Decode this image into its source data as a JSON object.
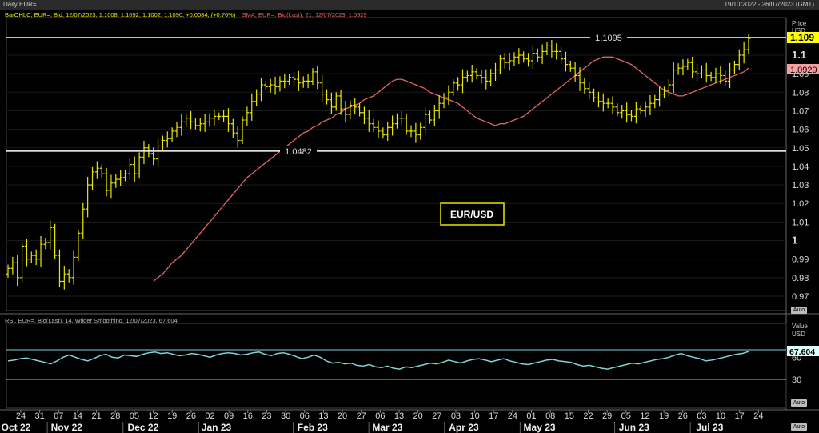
{
  "header": {
    "title": "Daily EUR=",
    "date_range": "19/10/2022 - 26/07/2023 (GMT)"
  },
  "legend": {
    "ohlc": "BarOHLC, EUR=, Bid, 12/07/2023, 1.1008, 1.1092, 1.1002, 1.1090, +0.0084, (+0.76%)",
    "sma": "SMA, EUR=, Bid(Last), 21, 12/07/2023, 1.0929",
    "rsi": "RSI, EUR=, Bid(Last), 14, Wilder Smoothing, 12/07/2023, 67.604"
  },
  "price_axis": {
    "title": "Price",
    "unit": "USD",
    "ticks": [
      "1.1",
      "1.09",
      "1.08",
      "1.07",
      "1.06",
      "1.05",
      "1.04",
      "1.03",
      "1.02",
      "1.01",
      "1",
      "0.99",
      "0.98",
      "0.97"
    ],
    "last_price_label": "1.109",
    "sma_label": "1.0929",
    "auto_label": "Auto"
  },
  "rsi_axis": {
    "title": "Value",
    "unit": "USD",
    "ticks": [
      "60",
      "30"
    ],
    "value_label": "67.604",
    "auto_label": "Auto"
  },
  "date_axis": {
    "days": [
      "24",
      "31",
      "07",
      "14",
      "21",
      "28",
      "05",
      "12",
      "19",
      "26",
      "02",
      "09",
      "16",
      "23",
      "30",
      "06",
      "13",
      "20",
      "27",
      "06",
      "13",
      "20",
      "27",
      "03",
      "10",
      "17",
      "24",
      "01",
      "08",
      "15",
      "22",
      "29",
      "05",
      "12",
      "19",
      "26",
      "03",
      "10",
      "17",
      "24"
    ],
    "months": [
      "Oct 22",
      "Nov 22",
      "Dec 22",
      "Jan 23",
      "Feb 23",
      "Mar 23",
      "Apr 23",
      "May 23",
      "Jun 23",
      "Jul 23"
    ],
    "auto_label": "Auto"
  },
  "annotations": {
    "box_label": "EUR/USD",
    "level_high": "1.1095",
    "level_low": "1.0482"
  },
  "colors": {
    "bars": "#e8e800",
    "sma": "#e06666",
    "rsi": "#7fd4d4",
    "levels": "#ffffff",
    "last_price_bg": "#ffff00",
    "sma_label_bg": "#f4a0a0"
  },
  "chart_data": [
    {
      "type": "line",
      "subtype": "ohlc",
      "x_start": "2022-10-21",
      "ylim": [
        0.965,
        1.113
      ],
      "series": [
        {
          "name": "EUR=",
          "values": [
            0.985,
            0.988,
            0.98,
            0.997,
            0.99,
            0.992,
            0.99,
            0.998,
            0.999,
            1.007,
            0.992,
            0.978,
            0.982,
            0.98,
            0.991,
            1.004,
            1.017,
            1.03,
            1.037,
            1.039,
            1.036,
            1.027,
            1.031,
            1.033,
            1.034,
            1.036,
            1.041,
            1.036,
            1.045,
            1.05,
            1.047,
            1.044,
            1.051,
            1.054,
            1.055,
            1.059,
            1.061,
            1.064,
            1.066,
            1.064,
            1.062,
            1.063,
            1.064,
            1.066,
            1.067,
            1.067,
            1.067,
            1.063,
            1.058,
            1.054,
            1.065,
            1.069,
            1.075,
            1.079,
            1.084,
            1.083,
            1.084,
            1.083,
            1.086,
            1.086,
            1.088,
            1.087,
            1.085,
            1.086,
            1.086,
            1.091,
            1.085,
            1.079,
            1.076,
            1.072,
            1.078,
            1.071,
            1.068,
            1.073,
            1.072,
            1.069,
            1.066,
            1.063,
            1.061,
            1.059,
            1.057,
            1.061,
            1.063,
            1.066,
            1.066,
            1.059,
            1.059,
            1.057,
            1.061,
            1.068,
            1.065,
            1.07,
            1.074,
            1.077,
            1.08,
            1.085,
            1.084,
            1.088,
            1.089,
            1.091,
            1.089,
            1.088,
            1.086,
            1.09,
            1.092,
            1.098,
            1.096,
            1.097,
            1.099,
            1.1,
            1.098,
            1.097,
            1.101,
            1.099,
            1.102,
            1.105,
            1.102,
            1.102,
            1.098,
            1.095,
            1.093,
            1.089,
            1.085,
            1.082,
            1.08,
            1.077,
            1.075,
            1.074,
            1.074,
            1.072,
            1.069,
            1.07,
            1.068,
            1.067,
            1.071,
            1.07,
            1.072,
            1.074,
            1.076,
            1.079,
            1.081,
            1.084,
            1.092,
            1.093,
            1.094,
            1.096,
            1.091,
            1.09,
            1.092,
            1.089,
            1.088,
            1.09,
            1.089,
            1.086,
            1.092,
            1.095,
            1.1,
            1.103,
            1.109
          ]
        },
        {
          "name": "SMA",
          "values": [
            0.978,
            0.98,
            0.982,
            0.985,
            0.988,
            0.99,
            0.992,
            0.995,
            0.998,
            1.001,
            1.004,
            1.007,
            1.01,
            1.013,
            1.016,
            1.019,
            1.022,
            1.025,
            1.028,
            1.031,
            1.034,
            1.036,
            1.038,
            1.04,
            1.042,
            1.044,
            1.046,
            1.048,
            1.05,
            1.052,
            1.054,
            1.056,
            1.058,
            1.059,
            1.061,
            1.062,
            1.064,
            1.065,
            1.066,
            1.068,
            1.069,
            1.071,
            1.072,
            1.073,
            1.074,
            1.076,
            1.077,
            1.078,
            1.08,
            1.082,
            1.084,
            1.086,
            1.087,
            1.087,
            1.086,
            1.085,
            1.084,
            1.083,
            1.082,
            1.08,
            1.079,
            1.078,
            1.077,
            1.076,
            1.075,
            1.074,
            1.072,
            1.07,
            1.068,
            1.066,
            1.065,
            1.064,
            1.063,
            1.062,
            1.063,
            1.063,
            1.064,
            1.065,
            1.066,
            1.067,
            1.069,
            1.071,
            1.073,
            1.075,
            1.077,
            1.079,
            1.081,
            1.083,
            1.085,
            1.087,
            1.089,
            1.091,
            1.093,
            1.095,
            1.097,
            1.098,
            1.099,
            1.099,
            1.099,
            1.098,
            1.097,
            1.096,
            1.095,
            1.093,
            1.091,
            1.089,
            1.087,
            1.085,
            1.083,
            1.081,
            1.08,
            1.079,
            1.078,
            1.078,
            1.079,
            1.08,
            1.081,
            1.082,
            1.083,
            1.084,
            1.085,
            1.086,
            1.087,
            1.088,
            1.089,
            1.09,
            1.091,
            1.093
          ]
        }
      ],
      "reference_lines": [
        1.1095,
        1.0482
      ]
    },
    {
      "type": "line",
      "ylim": [
        0,
        100
      ],
      "reference_lines": [
        70,
        30
      ],
      "series": [
        {
          "name": "RSI",
          "values": [
            55,
            56,
            58,
            59,
            57,
            55,
            53,
            51,
            55,
            60,
            63,
            60,
            57,
            55,
            58,
            62,
            64,
            60,
            59,
            63,
            62,
            61,
            64,
            66,
            67,
            65,
            66,
            64,
            62,
            63,
            65,
            64,
            62,
            60,
            63,
            65,
            66,
            65,
            63,
            64,
            66,
            67,
            64,
            62,
            65,
            66,
            64,
            61,
            58,
            60,
            63,
            60,
            55,
            52,
            53,
            51,
            52,
            49,
            48,
            50,
            47,
            46,
            48,
            45,
            44,
            47,
            46,
            48,
            50,
            52,
            51,
            53,
            56,
            54,
            52,
            55,
            57,
            58,
            56,
            54,
            56,
            58,
            55,
            53,
            51,
            50,
            52,
            54,
            56,
            57,
            55,
            54,
            53,
            50,
            48,
            49,
            47,
            45,
            44,
            46,
            48,
            50,
            52,
            51,
            53,
            55,
            57,
            58,
            60,
            63,
            65,
            62,
            60,
            58,
            55,
            56,
            58,
            60,
            62,
            64,
            65,
            67.604
          ]
        }
      ]
    }
  ]
}
